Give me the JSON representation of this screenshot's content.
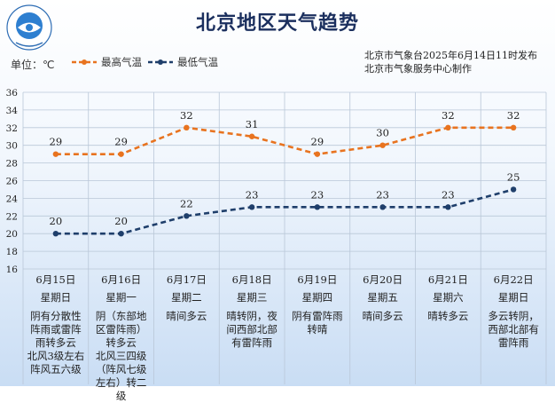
{
  "header": {
    "title": "北京地区天气趋势",
    "unit_label": "单位：℃",
    "publisher": "北京市气象台2025年6月14日11时发布",
    "producer": "北京市气象服务中心制作"
  },
  "logo": {
    "icon": "beijing-meteorological-logo-icon",
    "text": "BEIJING METEOROLOGICAL SERVICE"
  },
  "chart_data": {
    "type": "line",
    "categories": [
      "6月15日",
      "6月16日",
      "6月17日",
      "6月18日",
      "6月19日",
      "6月20日",
      "6月21日",
      "6月22日"
    ],
    "weekdays": [
      "星期日",
      "星期一",
      "星期二",
      "星期三",
      "星期四",
      "星期五",
      "星期六",
      "星期日"
    ],
    "weather": [
      "阴有分散性阵雨或雷阵雨转多云",
      "阴（东部地区雷阵雨）转多云",
      "晴间多云",
      "晴转阴，夜间西部北部有雷阵雨",
      "阴有雷阵雨转晴",
      "晴间多云",
      "晴转多云",
      "多云转阴，西部北部有雷阵雨"
    ],
    "wind": [
      "北风3级左右阵风五六级",
      "北风三四级（阵风七级左右）转二级",
      "",
      "",
      "",
      "",
      "",
      ""
    ],
    "series": [
      {
        "name": "最高气温",
        "values": [
          29,
          29,
          32,
          31,
          29,
          30,
          32,
          32
        ],
        "color": "#e8731f"
      },
      {
        "name": "最低气温",
        "values": [
          20,
          20,
          22,
          23,
          23,
          23,
          23,
          25
        ],
        "color": "#1f3f6b"
      }
    ],
    "yticks": [
      16,
      18,
      20,
      22,
      24,
      26,
      28,
      30,
      32,
      34,
      36
    ],
    "ylim": [
      16,
      36
    ],
    "grid": true,
    "legend_position": "top"
  }
}
